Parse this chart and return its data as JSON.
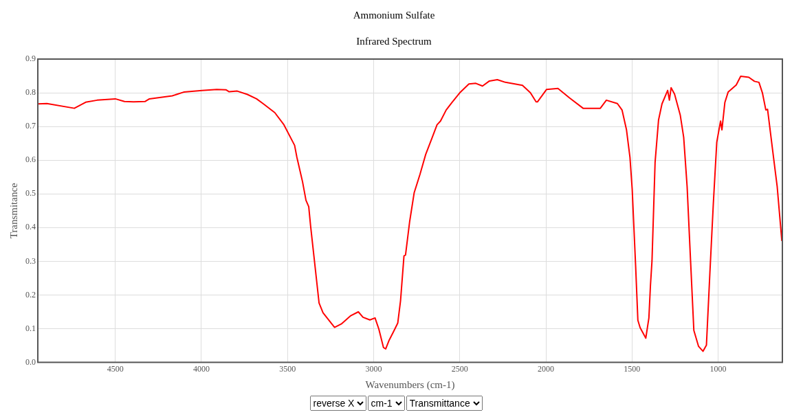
{
  "chart_data": {
    "type": "line",
    "title": "Ammonium Sulfate",
    "subtitle": "Infrared Spectrum",
    "xlabel": "Wavenumbers (cm-1)",
    "ylabel": "Transmitance",
    "x": [
      4950,
      4897,
      4738,
      4672,
      4606,
      4500,
      4447,
      4394,
      4328,
      4302,
      4169,
      4103,
      3997,
      3911,
      3858,
      3839,
      3792,
      3733,
      3680,
      3640,
      3574,
      3521,
      3459,
      3446,
      3413,
      3393,
      3377,
      3366,
      3347,
      3317,
      3294,
      3227,
      3188,
      3135,
      3089,
      3062,
      3022,
      2992,
      2970,
      2943,
      2930,
      2910,
      2884,
      2860,
      2844,
      2824,
      2815,
      2791,
      2765,
      2731,
      2698,
      2665,
      2632,
      2612,
      2579,
      2546,
      2500,
      2447,
      2407,
      2368,
      2328,
      2282,
      2235,
      2136,
      2090,
      2057,
      2049,
      1996,
      1930,
      1863,
      1784,
      1684,
      1649,
      1585,
      1558,
      1532,
      1512,
      1499,
      1479,
      1466,
      1453,
      1420,
      1402,
      1393,
      1384,
      1366,
      1346,
      1326,
      1293,
      1283,
      1273,
      1253,
      1220,
      1200,
      1180,
      1160,
      1141,
      1114,
      1088,
      1068,
      1048,
      1028,
      1008,
      986,
      978,
      961,
      942,
      895,
      869,
      822,
      789,
      763,
      743,
      723,
      713,
      684,
      657,
      630
    ],
    "values": [
      0.767,
      0.768,
      0.754,
      0.772,
      0.778,
      0.782,
      0.774,
      0.773,
      0.774,
      0.782,
      0.791,
      0.802,
      0.807,
      0.81,
      0.809,
      0.803,
      0.805,
      0.795,
      0.782,
      0.767,
      0.741,
      0.705,
      0.644,
      0.609,
      0.536,
      0.481,
      0.462,
      0.404,
      0.316,
      0.176,
      0.147,
      0.104,
      0.114,
      0.138,
      0.15,
      0.134,
      0.126,
      0.132,
      0.099,
      0.044,
      0.04,
      0.066,
      0.092,
      0.117,
      0.183,
      0.316,
      0.319,
      0.418,
      0.503,
      0.558,
      0.617,
      0.661,
      0.705,
      0.716,
      0.749,
      0.771,
      0.8,
      0.826,
      0.828,
      0.82,
      0.835,
      0.839,
      0.831,
      0.822,
      0.8,
      0.773,
      0.773,
      0.81,
      0.813,
      0.785,
      0.754,
      0.754,
      0.778,
      0.768,
      0.749,
      0.69,
      0.609,
      0.514,
      0.286,
      0.125,
      0.103,
      0.072,
      0.132,
      0.228,
      0.301,
      0.594,
      0.719,
      0.767,
      0.807,
      0.778,
      0.815,
      0.796,
      0.734,
      0.668,
      0.521,
      0.301,
      0.095,
      0.048,
      0.033,
      0.051,
      0.264,
      0.47,
      0.653,
      0.716,
      0.69,
      0.771,
      0.802,
      0.823,
      0.849,
      0.846,
      0.834,
      0.831,
      0.8,
      0.749,
      0.751,
      0.631,
      0.521,
      0.36
    ],
    "color": "#ff0000",
    "marker": "none",
    "line_style": "solid",
    "grid": true,
    "xlim": [
      4950,
      627
    ],
    "xticks": [
      1000,
      1500,
      2000,
      2500,
      3000,
      3500,
      4000,
      4500
    ],
    "ylim": [
      0,
      0.9
    ],
    "yticks": [
      {
        "value": 0,
        "label": "0.0"
      },
      0.1,
      0.2,
      0.3,
      0.4,
      0.5,
      0.6,
      0.7,
      0.8,
      0.9
    ],
    "annotations": [
      "reverse X",
      "cm-1",
      "Transmittance"
    ]
  }
}
